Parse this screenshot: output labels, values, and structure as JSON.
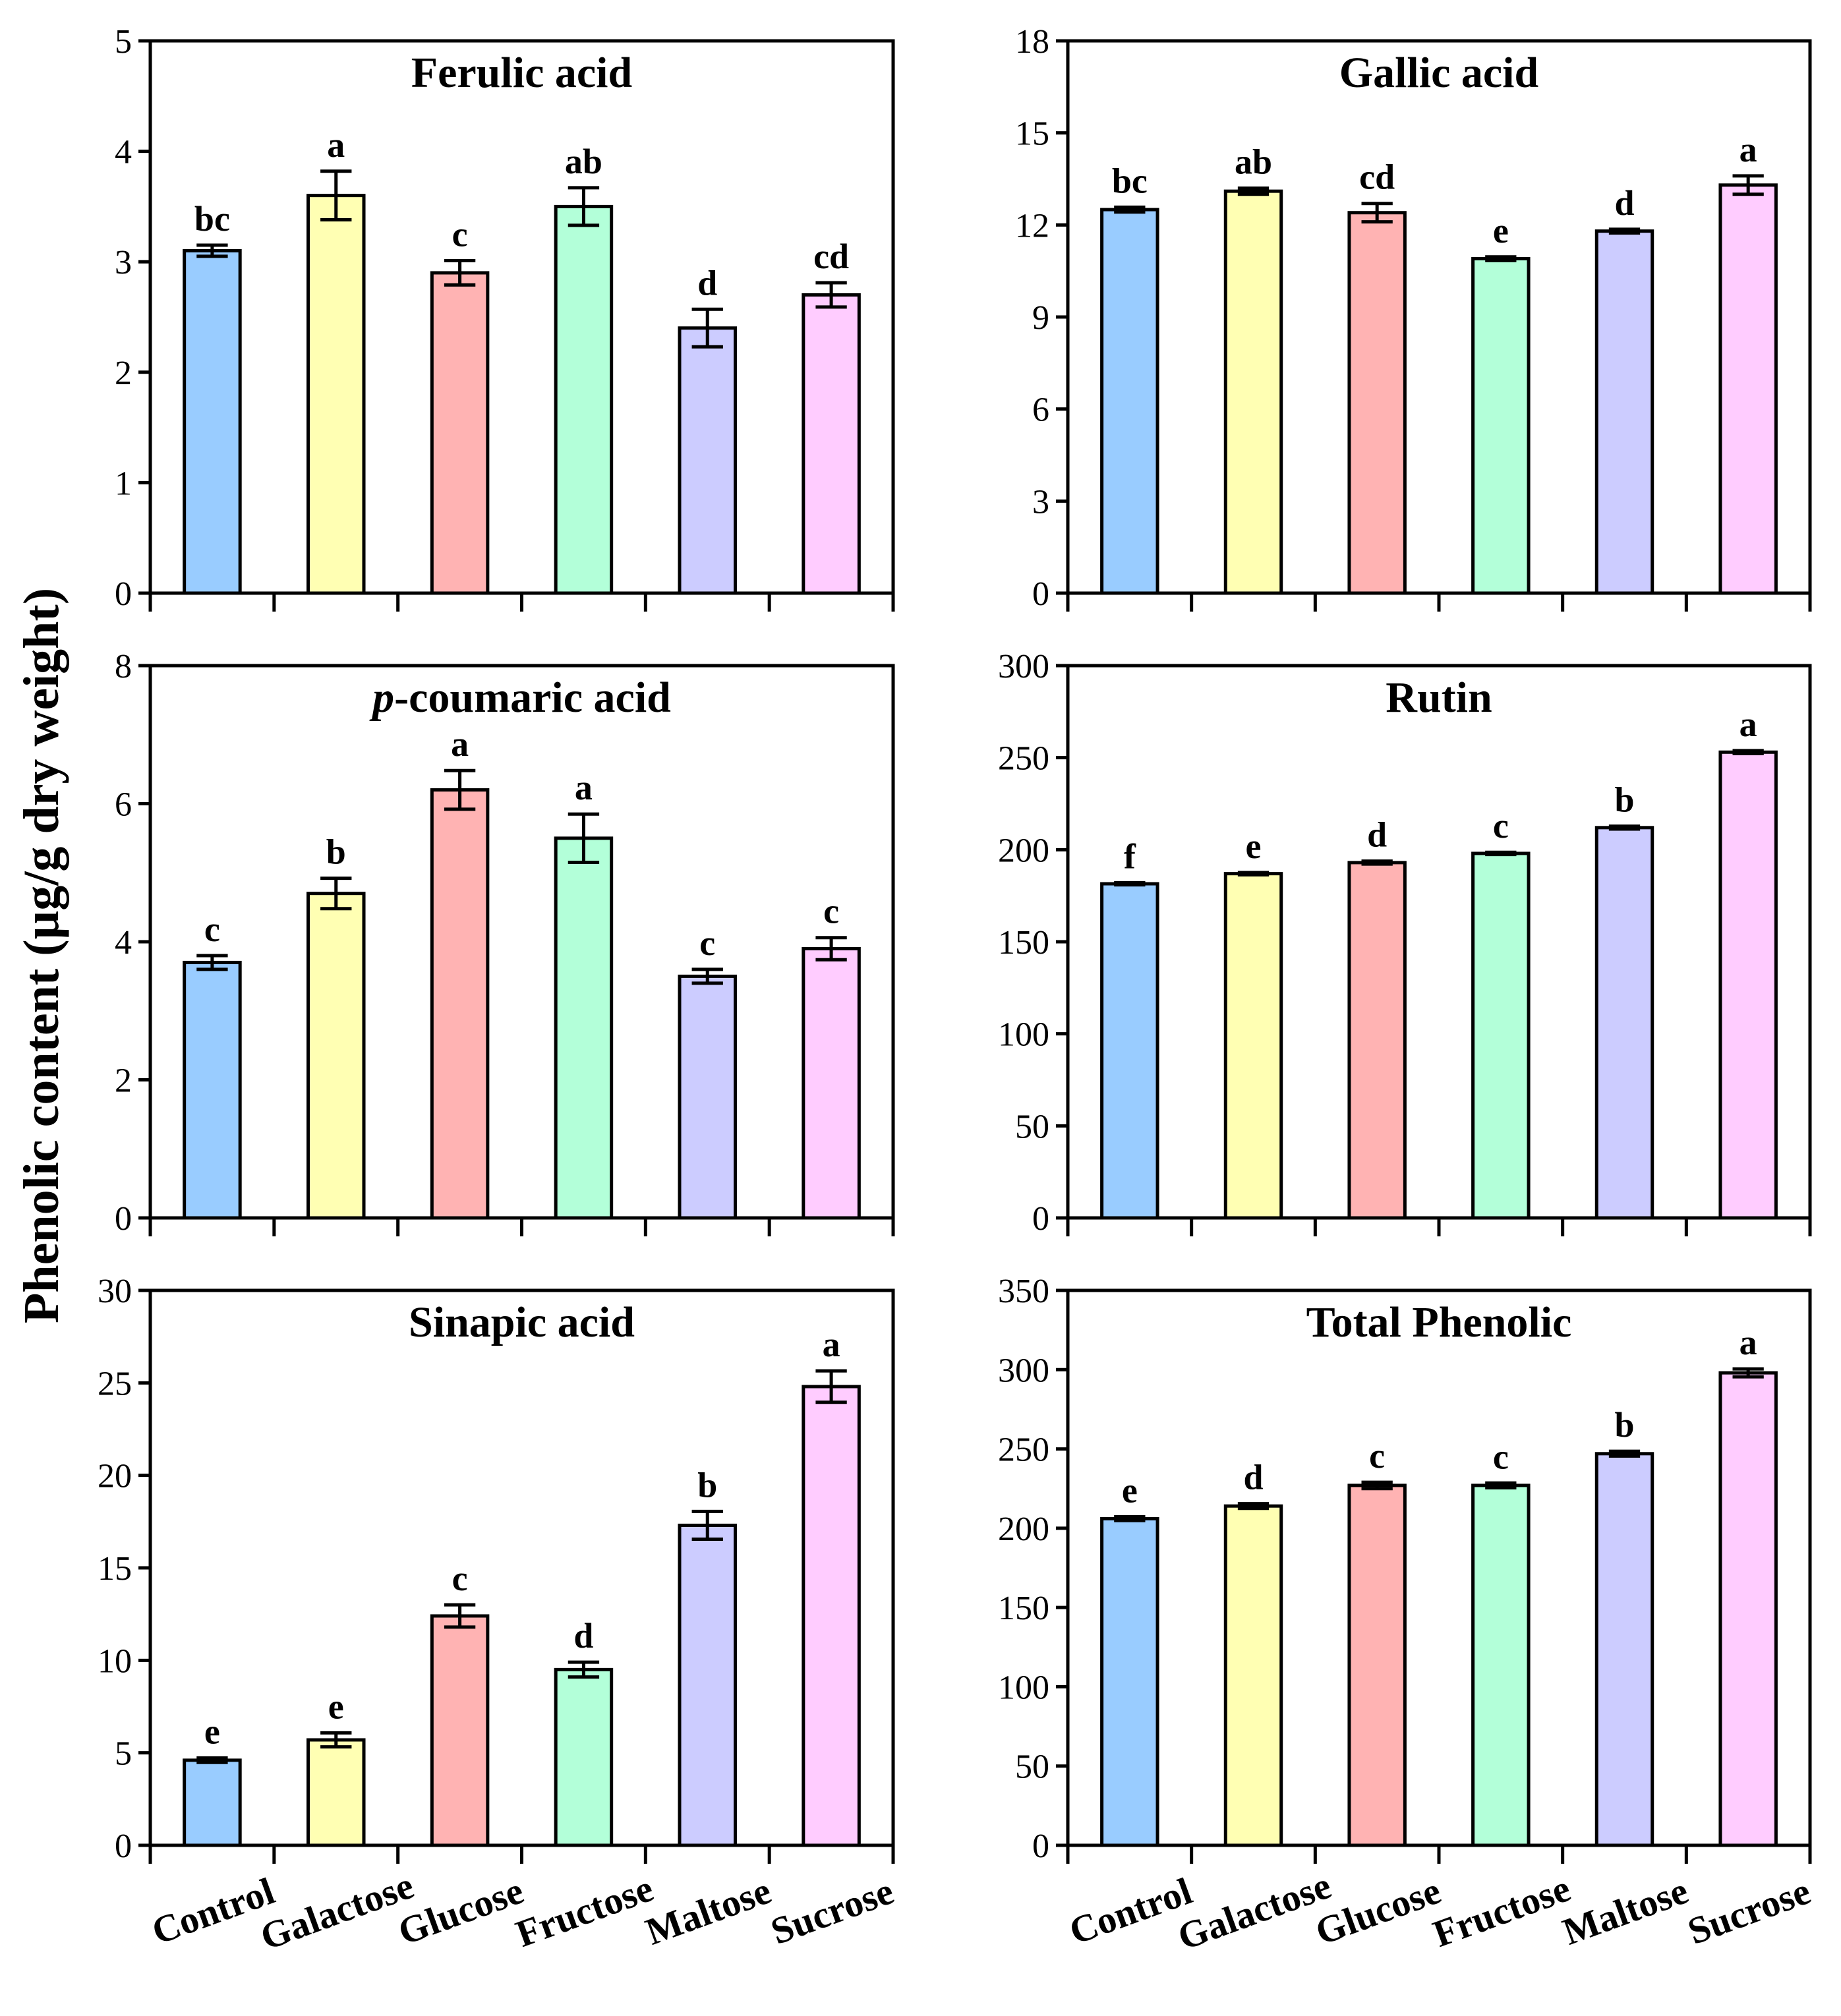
{
  "y_axis_label": "Phenolic content (µg/g dry weight)",
  "categories": [
    "Control",
    "Galactose",
    "Glucose",
    "Fructose",
    "Maltose",
    "Sucrose"
  ],
  "bar_colors": [
    "#99ccff",
    "#ffffb3",
    "#ffb3b3",
    "#b3ffd9",
    "#ccccff",
    "#ffccff"
  ],
  "chart_data": [
    {
      "type": "bar",
      "title": "Ferulic acid",
      "ylim": [
        0,
        5
      ],
      "ystep": 1,
      "categories": [
        "Control",
        "Galactose",
        "Glucose",
        "Fructose",
        "Maltose",
        "Sucrose"
      ],
      "values": [
        3.1,
        3.6,
        2.9,
        3.5,
        2.4,
        2.7
      ],
      "errors": [
        0.05,
        0.22,
        0.11,
        0.17,
        0.17,
        0.11
      ],
      "letters": [
        "bc",
        "a",
        "c",
        "ab",
        "d",
        "cd"
      ],
      "show_category_labels": false
    },
    {
      "type": "bar",
      "title": "Gallic acid",
      "ylim": [
        0,
        18
      ],
      "ystep": 3,
      "categories": [
        "Control",
        "Galactose",
        "Glucose",
        "Fructose",
        "Maltose",
        "Sucrose"
      ],
      "values": [
        12.5,
        13.1,
        12.4,
        10.9,
        11.8,
        13.3
      ],
      "errors": [
        0.08,
        0.1,
        0.3,
        0.06,
        0.06,
        0.3
      ],
      "letters": [
        "bc",
        "ab",
        "cd",
        "e",
        "d",
        "a"
      ],
      "show_category_labels": false
    },
    {
      "type": "bar",
      "title": "p-coumaric acid",
      "title_italic_prefix": "p",
      "title_rest": "-coumaric acid",
      "ylim": [
        0,
        8
      ],
      "ystep": 2,
      "categories": [
        "Control",
        "Galactose",
        "Glucose",
        "Fructose",
        "Maltose",
        "Sucrose"
      ],
      "values": [
        3.7,
        4.7,
        6.2,
        5.5,
        3.5,
        3.9
      ],
      "errors": [
        0.1,
        0.22,
        0.28,
        0.35,
        0.1,
        0.16
      ],
      "letters": [
        "c",
        "b",
        "a",
        "a",
        "c",
        "c"
      ],
      "show_category_labels": false
    },
    {
      "type": "bar",
      "title": "Rutin",
      "ylim": [
        0,
        300
      ],
      "ystep": 50,
      "categories": [
        "Control",
        "Galactose",
        "Glucose",
        "Fructose",
        "Maltose",
        "Sucrose"
      ],
      "values": [
        181.5,
        187,
        193,
        198,
        212,
        253
      ],
      "errors": [
        0.6,
        0.6,
        0.8,
        0.6,
        0.8,
        0.8
      ],
      "letters": [
        "f",
        "e",
        "d",
        "c",
        "b",
        "a"
      ],
      "show_category_labels": false
    },
    {
      "type": "bar",
      "title": "Sinapic acid",
      "ylim": [
        0,
        30
      ],
      "ystep": 5,
      "categories": [
        "Control",
        "Galactose",
        "Glucose",
        "Fructose",
        "Maltose",
        "Sucrose"
      ],
      "values": [
        4.6,
        5.7,
        12.4,
        9.5,
        17.3,
        24.8
      ],
      "errors": [
        0.12,
        0.38,
        0.6,
        0.4,
        0.75,
        0.85
      ],
      "letters": [
        "e",
        "e",
        "c",
        "d",
        "b",
        "a"
      ],
      "show_category_labels": true
    },
    {
      "type": "bar",
      "title": "Total Phenolic",
      "ylim": [
        0,
        350
      ],
      "ystep": 50,
      "categories": [
        "Control",
        "Galactose",
        "Glucose",
        "Fructose",
        "Maltose",
        "Sucrose"
      ],
      "values": [
        206,
        214,
        227,
        227,
        247,
        298
      ],
      "errors": [
        1.2,
        1.5,
        2,
        1.5,
        1.5,
        2.5
      ],
      "letters": [
        "e",
        "d",
        "c",
        "c",
        "b",
        "a"
      ],
      "show_category_labels": true
    }
  ]
}
